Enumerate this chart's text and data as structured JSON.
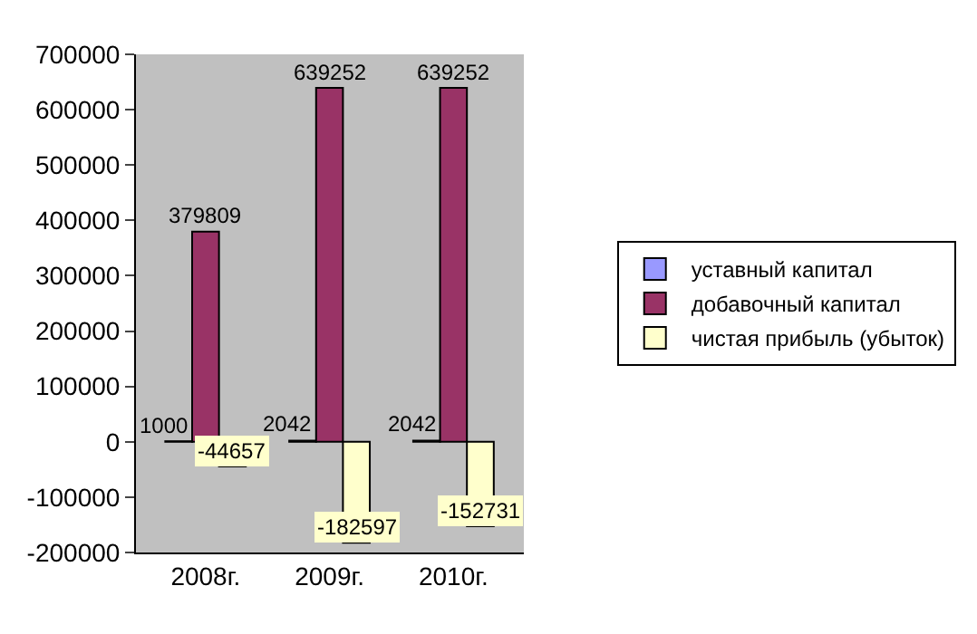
{
  "chart_data": {
    "type": "bar",
    "categories": [
      "2008г.",
      "2009г.",
      "2010г."
    ],
    "series": [
      {
        "name": "уставный капитал",
        "color": "#9999ff",
        "values": [
          1000,
          2042,
          2042
        ]
      },
      {
        "name": "добавочный капитал",
        "color": "#993366",
        "values": [
          379809,
          639252,
          639252
        ]
      },
      {
        "name": "чистая прибыль (убыток)",
        "color": "#ffffcc",
        "values": [
          -44657,
          -182597,
          -152731
        ]
      }
    ],
    "ylim": [
      -200000,
      700000
    ],
    "yticks": [
      -200000,
      -100000,
      0,
      100000,
      200000,
      300000,
      400000,
      500000,
      600000,
      700000
    ],
    "grid": false,
    "legend": "right",
    "data_labels": true
  }
}
